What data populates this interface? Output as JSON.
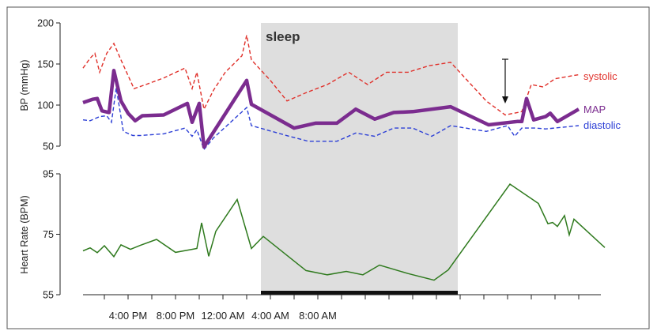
{
  "chart_data": [
    {
      "type": "line",
      "panel": "top",
      "ylabel": "BP (mmHg)",
      "ylim": [
        50,
        200
      ],
      "yticks": [
        50,
        100,
        150,
        200
      ],
      "series": [
        {
          "name": "systolic",
          "color": "#e0302a",
          "style": "dashed",
          "points": [
            [
              12.2,
              145
            ],
            [
              12.8,
              157
            ],
            [
              13.2,
              163
            ],
            [
              13.6,
              140
            ],
            [
              14.2,
              163
            ],
            [
              14.8,
              175
            ],
            [
              15.4,
              155
            ],
            [
              16.5,
              120
            ],
            [
              17.5,
              125
            ],
            [
              19.0,
              133
            ],
            [
              20.8,
              145
            ],
            [
              21.4,
              120
            ],
            [
              21.8,
              140
            ],
            [
              22.4,
              95
            ],
            [
              23.2,
              118
            ],
            [
              24.2,
              140
            ],
            [
              25.6,
              160
            ],
            [
              26.0,
              185
            ],
            [
              26.4,
              155
            ],
            [
              28.0,
              130
            ],
            [
              29.4,
              105
            ],
            [
              31.0,
              115
            ],
            [
              32.8,
              125
            ],
            [
              34.6,
              140
            ],
            [
              36.2,
              125
            ],
            [
              37.8,
              140
            ],
            [
              39.6,
              140
            ],
            [
              41.4,
              148
            ],
            [
              43.2,
              152
            ],
            [
              46.2,
              105
            ],
            [
              47.8,
              88
            ],
            [
              49.2,
              92
            ],
            [
              50.0,
              125
            ],
            [
              51.0,
              122
            ],
            [
              52.0,
              132
            ],
            [
              54.0,
              137
            ]
          ]
        },
        {
          "name": "MAP",
          "color": "#7b2c8f",
          "style": "solid-thick",
          "points": [
            [
              12.2,
              103
            ],
            [
              13.0,
              107
            ],
            [
              13.4,
              108
            ],
            [
              13.8,
              93
            ],
            [
              14.4,
              91
            ],
            [
              14.8,
              142
            ],
            [
              15.4,
              105
            ],
            [
              16.0,
              90
            ],
            [
              16.6,
              81
            ],
            [
              17.2,
              87
            ],
            [
              19.0,
              88
            ],
            [
              21.0,
              102
            ],
            [
              21.4,
              79
            ],
            [
              22.0,
              102
            ],
            [
              22.4,
              49
            ],
            [
              26.0,
              130
            ],
            [
              26.4,
              101
            ],
            [
              30.0,
              72
            ],
            [
              31.8,
              78
            ],
            [
              33.6,
              78
            ],
            [
              35.2,
              95
            ],
            [
              36.8,
              83
            ],
            [
              38.4,
              91
            ],
            [
              40.0,
              92
            ],
            [
              43.2,
              98
            ],
            [
              46.4,
              76
            ],
            [
              48.8,
              80
            ],
            [
              49.2,
              80
            ],
            [
              49.6,
              108
            ],
            [
              50.2,
              82
            ],
            [
              51.2,
              86
            ],
            [
              51.6,
              90
            ],
            [
              52.2,
              80
            ],
            [
              54.0,
              95
            ]
          ]
        },
        {
          "name": "diastolic",
          "color": "#2c3fd6",
          "style": "dashed",
          "points": [
            [
              12.2,
              82
            ],
            [
              12.8,
              81
            ],
            [
              13.6,
              86
            ],
            [
              14.2,
              87
            ],
            [
              14.6,
              79
            ],
            [
              15.0,
              121
            ],
            [
              15.6,
              68
            ],
            [
              16.4,
              63
            ],
            [
              17.0,
              63
            ],
            [
              19.0,
              65
            ],
            [
              20.8,
              72
            ],
            [
              21.4,
              62
            ],
            [
              21.8,
              70
            ],
            [
              22.4,
              46
            ],
            [
              23.2,
              60
            ],
            [
              26.0,
              97
            ],
            [
              26.4,
              75
            ],
            [
              29.6,
              62
            ],
            [
              31.2,
              56
            ],
            [
              33.6,
              56
            ],
            [
              35.2,
              66
            ],
            [
              36.8,
              62
            ],
            [
              38.4,
              72
            ],
            [
              40.0,
              72
            ],
            [
              41.6,
              62
            ],
            [
              43.2,
              75
            ],
            [
              46.2,
              68
            ],
            [
              48.0,
              75
            ],
            [
              48.6,
              62
            ],
            [
              49.2,
              72
            ],
            [
              50.4,
              72
            ],
            [
              51.2,
              71
            ],
            [
              54.0,
              75
            ]
          ]
        }
      ],
      "annotations": [
        "sleep"
      ]
    },
    {
      "type": "line",
      "panel": "bottom",
      "ylabel": "Heart Rate (BPM)",
      "ylim": [
        55,
        95
      ],
      "yticks": [
        55,
        75,
        95
      ],
      "series": [
        {
          "name": "Heart Rate",
          "color": "#2f7a1e",
          "style": "solid",
          "points": [
            [
              12.2,
              69.5
            ],
            [
              12.8,
              70.5
            ],
            [
              13.4,
              68.9
            ],
            [
              14.0,
              71.2
            ],
            [
              14.8,
              67.6
            ],
            [
              15.4,
              71.5
            ],
            [
              16.2,
              70.0
            ],
            [
              17.0,
              71.3
            ],
            [
              18.4,
              73.3
            ],
            [
              20.0,
              69.0
            ],
            [
              21.8,
              70.3
            ],
            [
              22.2,
              78.8
            ],
            [
              22.8,
              67.7
            ],
            [
              23.4,
              76.0
            ],
            [
              25.2,
              86.5
            ],
            [
              26.4,
              70.3
            ],
            [
              27.4,
              74.3
            ],
            [
              31.0,
              63.0
            ],
            [
              32.8,
              61.6
            ],
            [
              34.4,
              62.7
            ],
            [
              35.8,
              61.6
            ],
            [
              37.2,
              64.8
            ],
            [
              39.6,
              62.0
            ],
            [
              41.8,
              59.8
            ],
            [
              43.0,
              63.2
            ],
            [
              48.2,
              91.6
            ],
            [
              50.6,
              85.2
            ],
            [
              51.4,
              78.5
            ],
            [
              51.8,
              78.9
            ],
            [
              52.2,
              77.6
            ],
            [
              52.8,
              81.2
            ],
            [
              53.2,
              74.8
            ],
            [
              53.6,
              80.0
            ],
            [
              56.2,
              70.6
            ]
          ]
        }
      ]
    }
  ],
  "x_axis": {
    "hour_range": [
      12.2,
      56.6
    ],
    "tick_labels": [
      "4:00 PM",
      "8:00 PM",
      "12:00 AM",
      "4:00 AM",
      "8:00 AM"
    ],
    "tick_hours": [
      16,
      20,
      24,
      28,
      32
    ]
  },
  "sleep_period": {
    "label": "sleep",
    "start_hour": 27.2,
    "end_hour": 43.8
  },
  "legend": {
    "systolic": "systolic",
    "map": "MAP",
    "diastolic": "diastolic"
  },
  "arrow_marker_hour": 47.8,
  "colors": {
    "systolic": "#e0302a",
    "map": "#7b2c8f",
    "diastolic": "#2c3fd6",
    "heart_rate": "#2f7a1e",
    "sleep_band": "#dedede"
  }
}
